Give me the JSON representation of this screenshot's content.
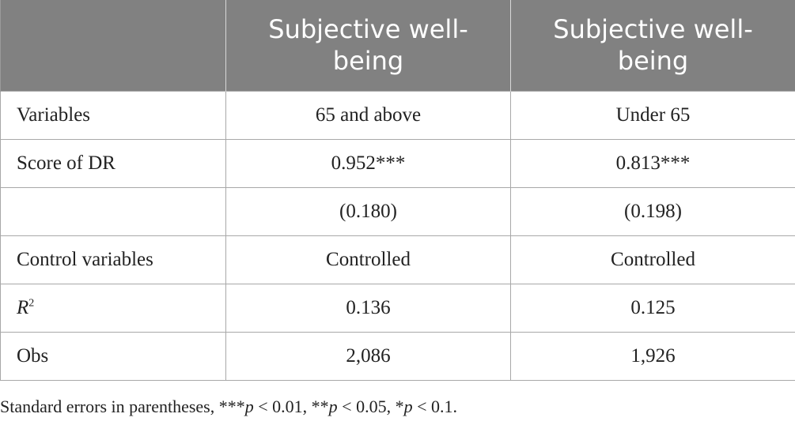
{
  "table": {
    "headers": [
      "",
      "Subjective well-being",
      "Subjective well-being"
    ],
    "rows": [
      {
        "label": "Variables",
        "col1": "65 and above",
        "col2": "Under 65"
      },
      {
        "label": "Score of DR",
        "col1": "0.952***",
        "col2": "0.813***"
      },
      {
        "label": "",
        "col1": "(0.180)",
        "col2": "(0.198)"
      },
      {
        "label": "Control variables",
        "col1": "Controlled",
        "col2": "Controlled"
      },
      {
        "label_base": "R",
        "label_sup": "2",
        "col1": "0.136",
        "col2": "0.125"
      },
      {
        "label": "Obs",
        "col1": "2,086",
        "col2": "1,926"
      }
    ]
  },
  "footnote": {
    "lead": "Standard errors in parentheses, ***",
    "p": "p",
    "t1": " < 0.01, **",
    "t2": " < 0.05, *",
    "t3": " < 0.1."
  }
}
